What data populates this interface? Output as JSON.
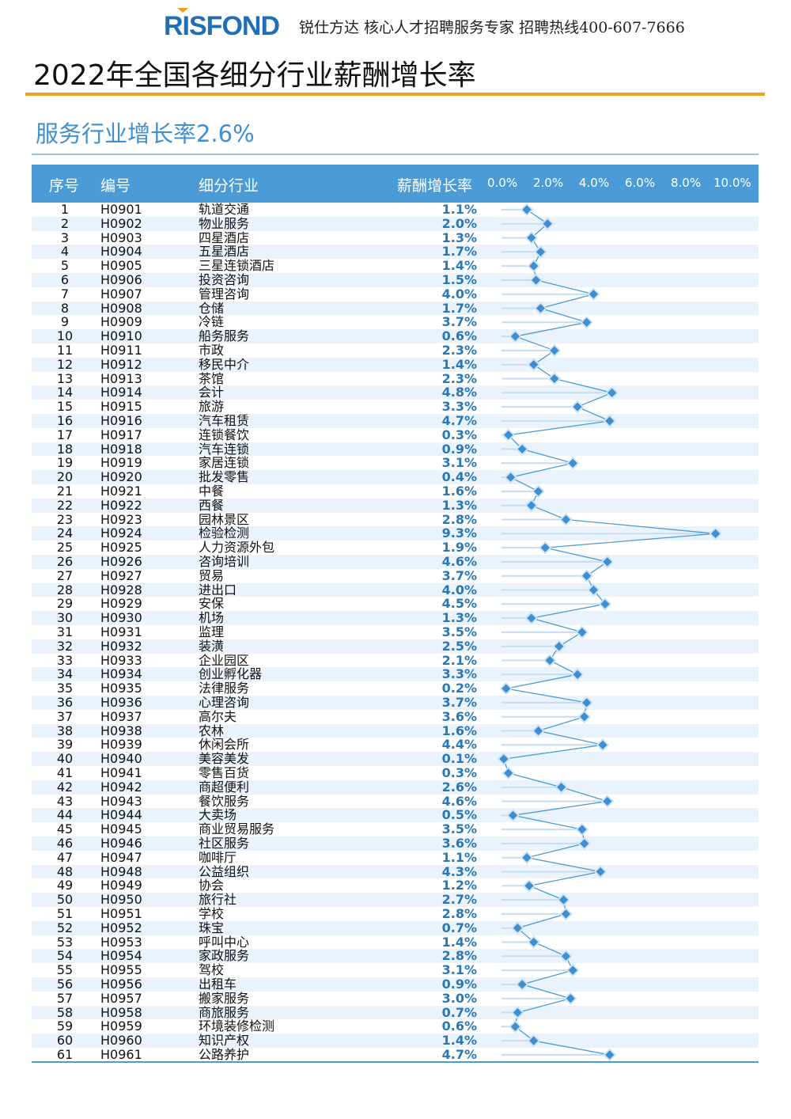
{
  "header": {
    "logo": "RISFOND",
    "slogan": "锐仕方达 核心人才招聘服务专家 招聘热线400-607-7666"
  },
  "title": "2022年全国各细分行业薪酬增长率",
  "subtitle": "服务行业增长率2.6%",
  "columns": {
    "idx": "序号",
    "code": "编号",
    "name": "细分行业",
    "rate": "薪酬增长率"
  },
  "colors": {
    "accent": "#4a9bd6",
    "orange": "#f0a01e",
    "marker": "#3d8fd1"
  },
  "chart_data": {
    "type": "line",
    "title": "薪酬增长率",
    "xlim": [
      0,
      10
    ],
    "ticks": [
      "0.0%",
      "2.0%",
      "4.0%",
      "6.0%",
      "8.0%",
      "10.0%"
    ],
    "rows": [
      [
        "1",
        "H0901",
        "轨道交通",
        "1.1%",
        1.1
      ],
      [
        "2",
        "H0902",
        "物业服务",
        "2.0%",
        2.0
      ],
      [
        "3",
        "H0903",
        "四星酒店",
        "1.3%",
        1.3
      ],
      [
        "4",
        "H0904",
        "五星酒店",
        "1.7%",
        1.7
      ],
      [
        "5",
        "H0905",
        "三星连锁酒店",
        "1.4%",
        1.4
      ],
      [
        "6",
        "H0906",
        "投资咨询",
        "1.5%",
        1.5
      ],
      [
        "7",
        "H0907",
        "管理咨询",
        "4.0%",
        4.0
      ],
      [
        "8",
        "H0908",
        "仓储",
        "1.7%",
        1.7
      ],
      [
        "9",
        "H0909",
        "冷链",
        "3.7%",
        3.7
      ],
      [
        "10",
        "H0910",
        "船务服务",
        "0.6%",
        0.6
      ],
      [
        "11",
        "H0911",
        "市政",
        "2.3%",
        2.3
      ],
      [
        "12",
        "H0912",
        "移民中介",
        "1.4%",
        1.4
      ],
      [
        "13",
        "H0913",
        "茶馆",
        "2.3%",
        2.3
      ],
      [
        "14",
        "H0914",
        "会计",
        "4.8%",
        4.8
      ],
      [
        "15",
        "H0915",
        "旅游",
        "3.3%",
        3.3
      ],
      [
        "16",
        "H0916",
        "汽车租赁",
        "4.7%",
        4.7
      ],
      [
        "17",
        "H0917",
        "连锁餐饮",
        "0.3%",
        0.3
      ],
      [
        "18",
        "H0918",
        "汽车连锁",
        "0.9%",
        0.9
      ],
      [
        "19",
        "H0919",
        "家居连锁",
        "3.1%",
        3.1
      ],
      [
        "20",
        "H0920",
        "批发零售",
        "0.4%",
        0.4
      ],
      [
        "21",
        "H0921",
        "中餐",
        "1.6%",
        1.6
      ],
      [
        "22",
        "H0922",
        "西餐",
        "1.3%",
        1.3
      ],
      [
        "23",
        "H0923",
        "园林景区",
        "2.8%",
        2.8
      ],
      [
        "24",
        "H0924",
        "检验检测",
        "9.3%",
        9.3
      ],
      [
        "25",
        "H0925",
        "人力资源外包",
        "1.9%",
        1.9
      ],
      [
        "26",
        "H0926",
        "咨询培训",
        "4.6%",
        4.6
      ],
      [
        "27",
        "H0927",
        "贸易",
        "3.7%",
        3.7
      ],
      [
        "28",
        "H0928",
        "进出口",
        "4.0%",
        4.0
      ],
      [
        "29",
        "H0929",
        "安保",
        "4.5%",
        4.5
      ],
      [
        "30",
        "H0930",
        "机场",
        "1.3%",
        1.3
      ],
      [
        "31",
        "H0931",
        "监理",
        "3.5%",
        3.5
      ],
      [
        "32",
        "H0932",
        "装潢",
        "2.5%",
        2.5
      ],
      [
        "33",
        "H0933",
        "企业园区",
        "2.1%",
        2.1
      ],
      [
        "34",
        "H0934",
        "创业孵化器",
        "3.3%",
        3.3
      ],
      [
        "35",
        "H0935",
        "法律服务",
        "0.2%",
        0.2
      ],
      [
        "36",
        "H0936",
        "心理咨询",
        "3.7%",
        3.7
      ],
      [
        "37",
        "H0937",
        "高尔夫",
        "3.6%",
        3.6
      ],
      [
        "38",
        "H0938",
        "农林",
        "1.6%",
        1.6
      ],
      [
        "39",
        "H0939",
        "休闲会所",
        "4.4%",
        4.4
      ],
      [
        "40",
        "H0940",
        "美容美发",
        "0.1%",
        0.1
      ],
      [
        "41",
        "H0941",
        "零售百货",
        "0.3%",
        0.3
      ],
      [
        "42",
        "H0942",
        "商超便利",
        "2.6%",
        2.6
      ],
      [
        "43",
        "H0943",
        "餐饮服务",
        "4.6%",
        4.6
      ],
      [
        "44",
        "H0944",
        "大卖场",
        "0.5%",
        0.5
      ],
      [
        "45",
        "H0945",
        "商业贸易服务",
        "3.5%",
        3.5
      ],
      [
        "46",
        "H0946",
        "社区服务",
        "3.6%",
        3.6
      ],
      [
        "47",
        "H0947",
        "咖啡厅",
        "1.1%",
        1.1
      ],
      [
        "48",
        "H0948",
        "公益组织",
        "4.3%",
        4.3
      ],
      [
        "49",
        "H0949",
        "协会",
        "1.2%",
        1.2
      ],
      [
        "50",
        "H0950",
        "旅行社",
        "2.7%",
        2.7
      ],
      [
        "51",
        "H0951",
        "学校",
        "2.8%",
        2.8
      ],
      [
        "52",
        "H0952",
        "珠宝",
        "0.7%",
        0.7
      ],
      [
        "53",
        "H0953",
        "呼叫中心",
        "1.4%",
        1.4
      ],
      [
        "54",
        "H0954",
        "家政服务",
        "2.8%",
        2.8
      ],
      [
        "55",
        "H0955",
        "驾校",
        "3.1%",
        3.1
      ],
      [
        "56",
        "H0956",
        "出租车",
        "0.9%",
        0.9
      ],
      [
        "57",
        "H0957",
        "搬家服务",
        "3.0%",
        3.0
      ],
      [
        "58",
        "H0958",
        "商旅服务",
        "0.7%",
        0.7
      ],
      [
        "59",
        "H0959",
        "环境装修检测",
        "0.6%",
        0.6
      ],
      [
        "60",
        "H0960",
        "知识产权",
        "1.4%",
        1.4
      ],
      [
        "61",
        "H0961",
        "公路养护",
        "4.7%",
        4.7
      ]
    ]
  }
}
